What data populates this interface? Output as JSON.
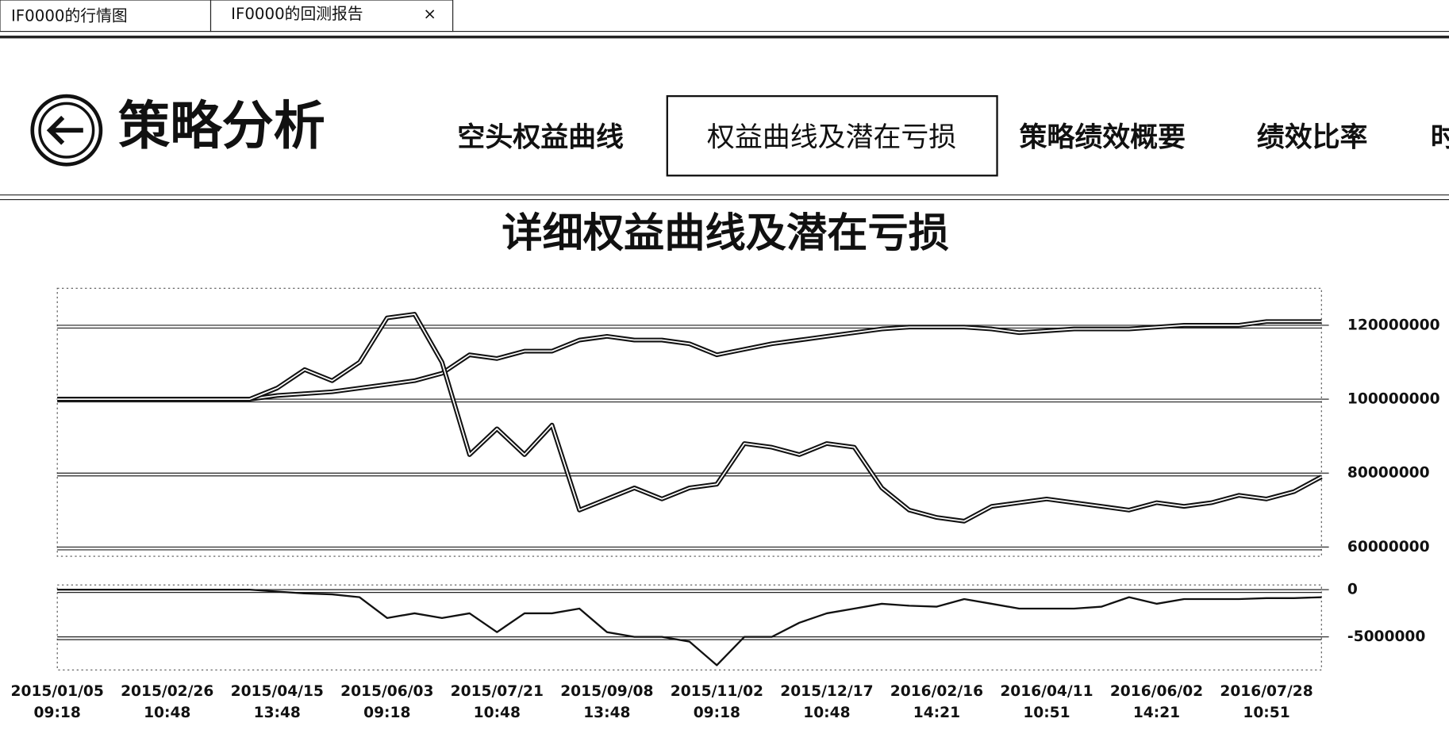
{
  "tabs": [
    "IF0000的行情图",
    "IF0000的回测报告"
  ],
  "tab_close": "×",
  "header": {
    "title": "策略分析"
  },
  "nav": {
    "items": [
      "空头权益曲线",
      "权益曲线及潜在亏损",
      "策略绩效概要",
      "绩效比率",
      "时"
    ],
    "active": 1
  },
  "chart_data": [
    {
      "type": "line",
      "title": "详细权益曲线及潜在亏损",
      "ylim": [
        57500000,
        130000000
      ],
      "yticks": [
        60000000,
        80000000,
        100000000,
        120000000
      ],
      "grid": true,
      "series": [
        {
          "color": "#111111",
          "values": [
            100000000,
            100000000,
            100000000,
            100000000,
            100000000,
            100000000,
            100000000,
            100000000,
            101000000,
            101500000,
            102000000,
            103000000,
            104000000,
            105000000,
            107000000,
            112000000,
            111000000,
            113000000,
            113000000,
            116000000,
            117000000,
            116000000,
            116000000,
            115000000,
            112000000,
            113500000,
            115000000,
            116000000,
            117000000,
            118000000,
            119000000,
            119500000,
            119500000,
            119500000,
            119000000,
            118000000,
            118500000,
            119000000,
            119000000,
            119000000,
            119500000,
            120000000,
            120000000,
            120000000,
            121000000,
            121000000,
            121000000
          ]
        },
        {
          "color": "#111111",
          "values": [
            100000000,
            100000000,
            100000000,
            100000000,
            100000000,
            100000000,
            100000000,
            100000000,
            103000000,
            108000000,
            105000000,
            110000000,
            122000000,
            123000000,
            110000000,
            85000000,
            92000000,
            85000000,
            93000000,
            70000000,
            73000000,
            76000000,
            73000000,
            76000000,
            77000000,
            88000000,
            87000000,
            85000000,
            88000000,
            87000000,
            76000000,
            70000000,
            68000000,
            67000000,
            71000000,
            72000000,
            73000000,
            72000000,
            71000000,
            70000000,
            72000000,
            71000000,
            72000000,
            74000000,
            73000000,
            75000000,
            79000000
          ]
        }
      ]
    },
    {
      "type": "line",
      "categories": [
        [
          "2015/01/05",
          "09:18"
        ],
        null,
        null,
        null,
        [
          "2015/02/26",
          "10:48"
        ],
        null,
        null,
        null,
        [
          "2015/04/15",
          "13:48"
        ],
        null,
        null,
        null,
        [
          "2015/06/03",
          "09:18"
        ],
        null,
        null,
        null,
        [
          "2015/07/21",
          "10:48"
        ],
        null,
        null,
        null,
        [
          "2015/09/08",
          "13:48"
        ],
        null,
        null,
        null,
        [
          "2015/11/02",
          "09:18"
        ],
        null,
        null,
        null,
        [
          "2015/12/17",
          "10:48"
        ],
        null,
        null,
        null,
        [
          "2016/02/16",
          "14:21"
        ],
        null,
        null,
        null,
        [
          "2016/04/11",
          "10:51"
        ],
        null,
        null,
        null,
        [
          "2016/06/02",
          "14:21"
        ],
        null,
        null,
        null,
        [
          "2016/07/28",
          "10:51"
        ],
        null,
        null
      ],
      "ylim": [
        -8500000,
        500000
      ],
      "yticks": [
        -5000000,
        0
      ],
      "grid": true,
      "series": [
        {
          "color": "#111111",
          "values": [
            0,
            0,
            0,
            0,
            0,
            0,
            0,
            0,
            -200000,
            -400000,
            -500000,
            -800000,
            -3000000,
            -2500000,
            -3000000,
            -2500000,
            -4500000,
            -2500000,
            -2500000,
            -2000000,
            -4500000,
            -5000000,
            -5000000,
            -5500000,
            -8000000,
            -5000000,
            -5000000,
            -3500000,
            -2500000,
            -2000000,
            -1500000,
            -1700000,
            -1800000,
            -1000000,
            -1500000,
            -2000000,
            -2000000,
            -2000000,
            -1800000,
            -800000,
            -1500000,
            -1000000,
            -1000000,
            -1000000,
            -900000,
            -900000,
            -800000
          ]
        }
      ]
    }
  ]
}
